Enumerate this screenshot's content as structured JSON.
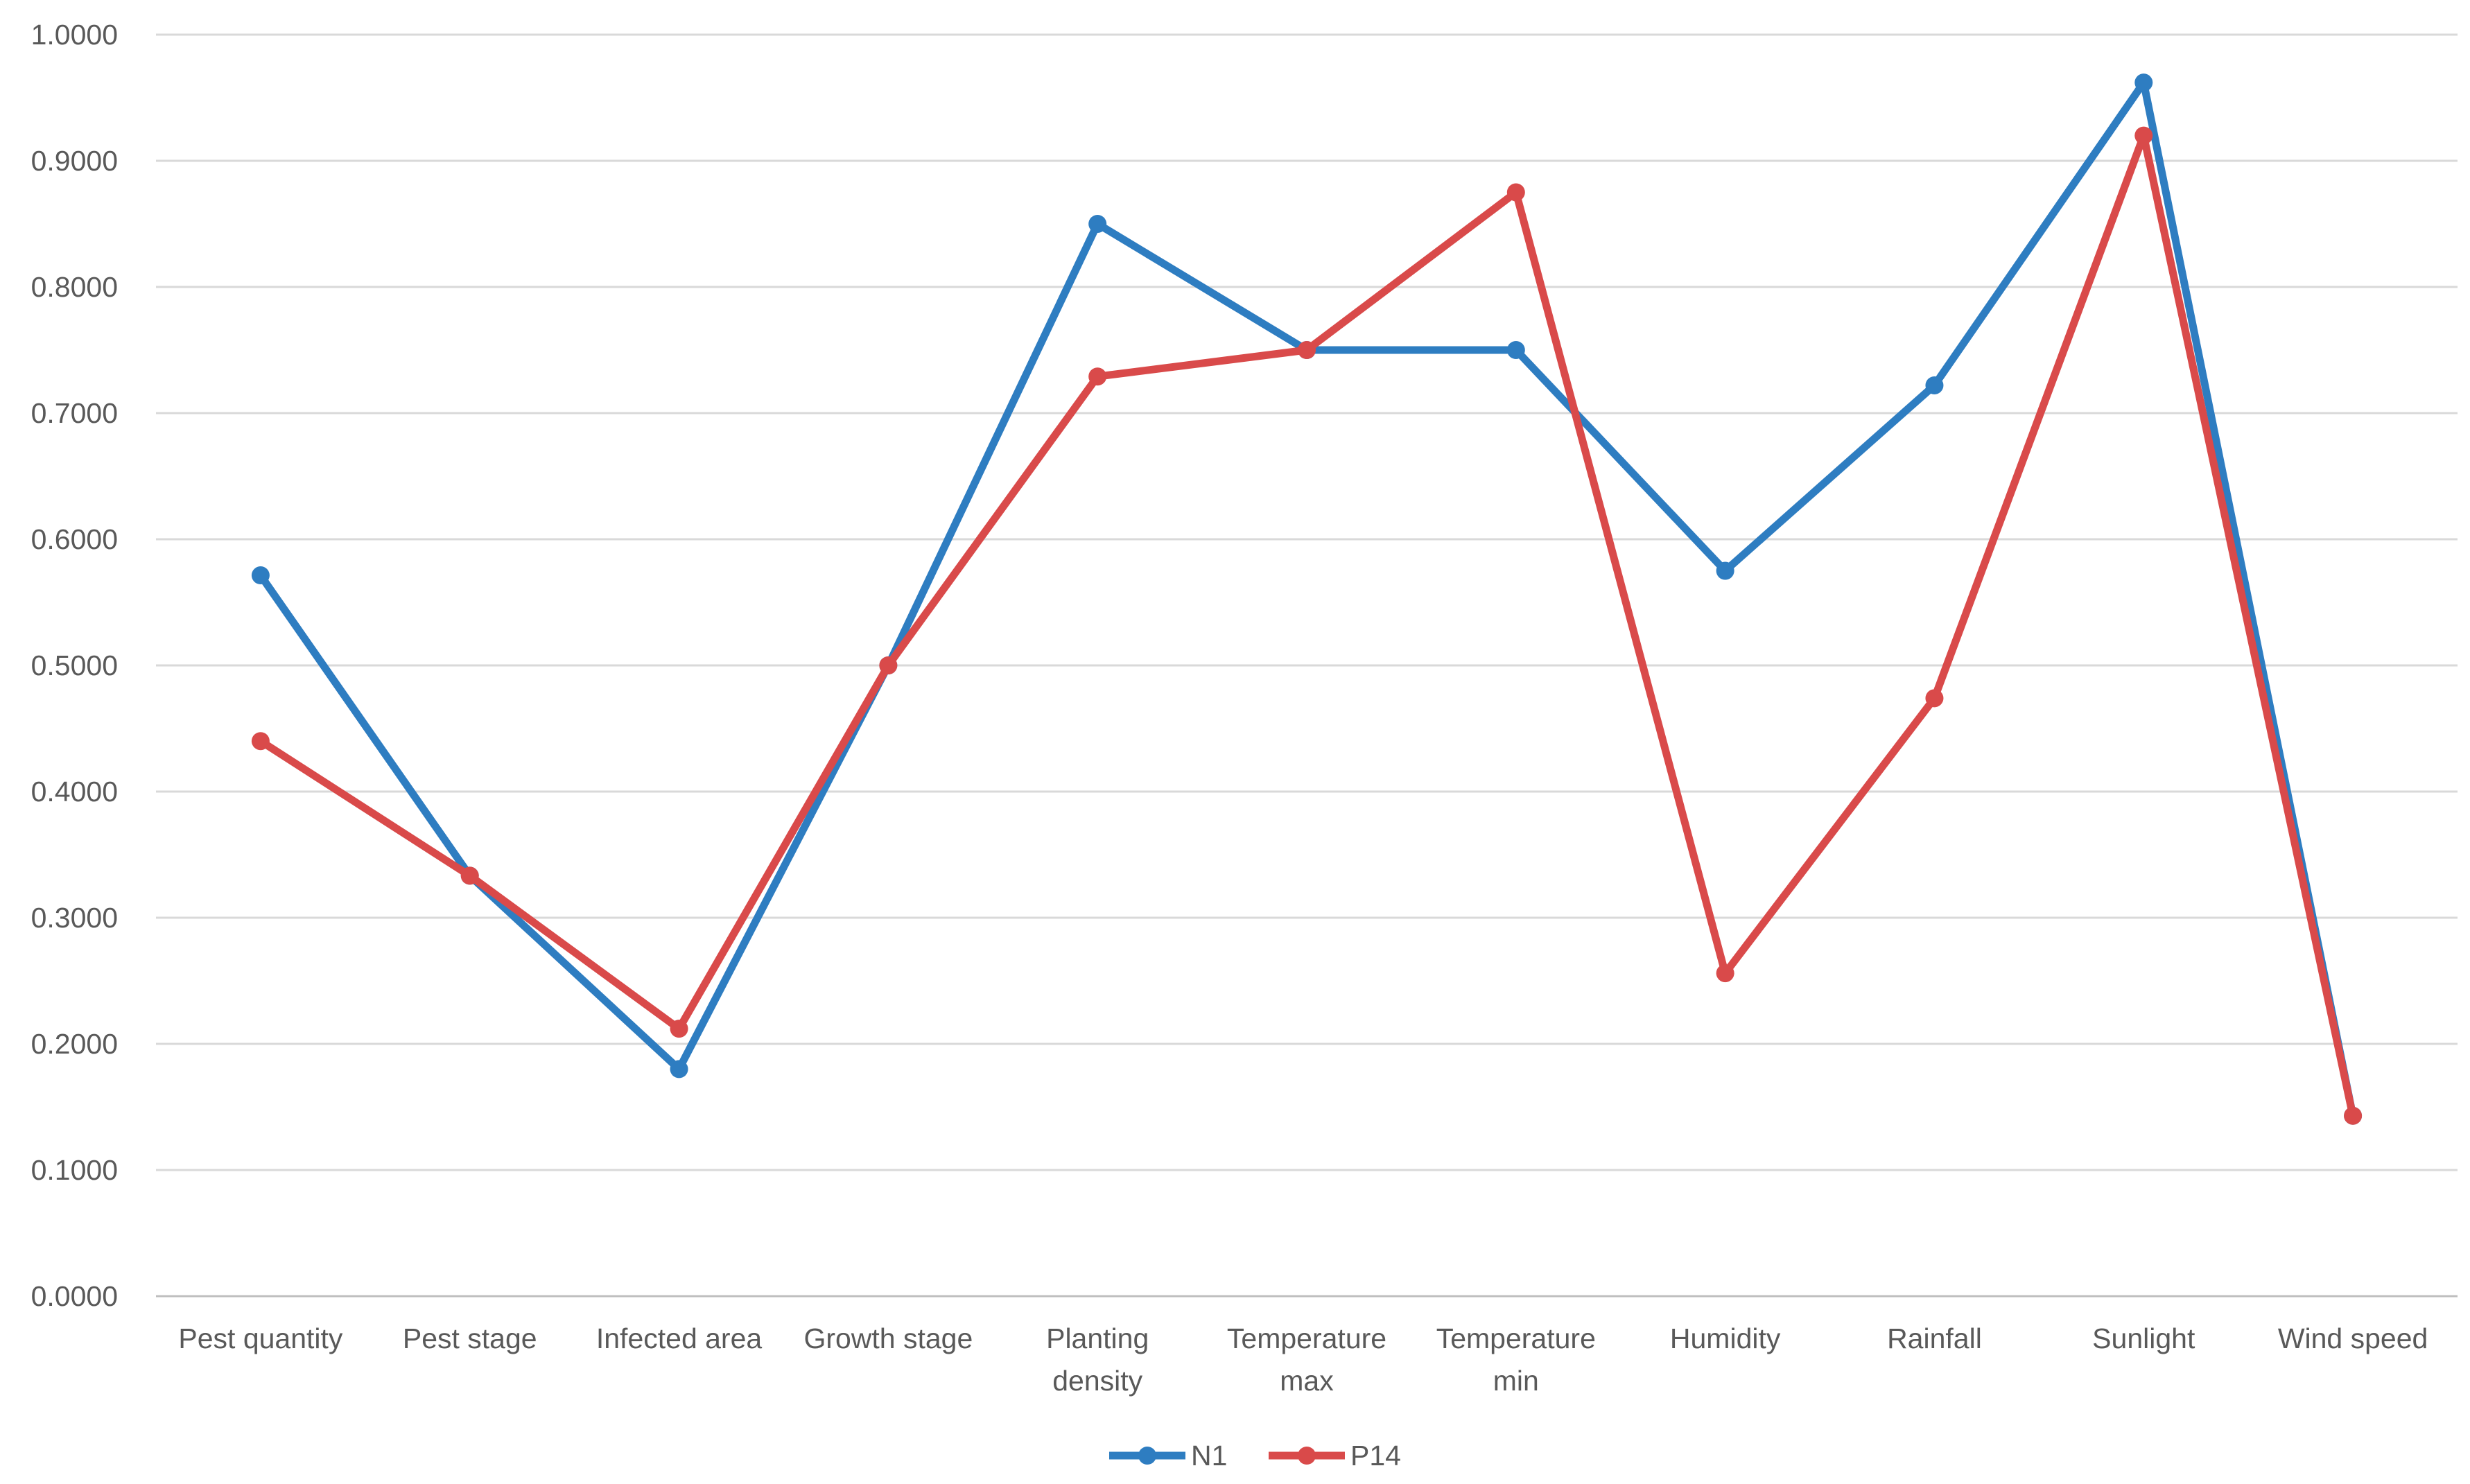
{
  "chart_data": {
    "type": "line",
    "title": "",
    "xlabel": "",
    "ylabel": "",
    "categories": [
      [
        "Pest quantity"
      ],
      [
        "Pest stage"
      ],
      [
        "Infected area"
      ],
      [
        "Growth stage"
      ],
      [
        "Planting",
        "density"
      ],
      [
        "Temperature",
        "max"
      ],
      [
        "Temperature",
        "min"
      ],
      [
        "Humidity"
      ],
      [
        "Rainfall"
      ],
      [
        "Sunlight"
      ],
      [
        "Wind speed"
      ]
    ],
    "y_ticks": [
      "0.0000",
      "0.1000",
      "0.2000",
      "0.3000",
      "0.4000",
      "0.5000",
      "0.6000",
      "0.7000",
      "0.8000",
      "0.9000",
      "1.0000"
    ],
    "ylim": [
      0,
      1
    ],
    "grid": true,
    "legend_position": "bottom",
    "series": [
      {
        "name": "N1",
        "color": "#2e7dc1",
        "values": [
          0.5714,
          0.3333,
          0.18,
          0.5,
          0.85,
          0.75,
          0.75,
          0.575,
          0.722,
          0.962,
          0.143
        ]
      },
      {
        "name": "P14",
        "color": "#d94a4a",
        "values": [
          0.44,
          0.3333,
          0.212,
          0.5,
          0.729,
          0.75,
          0.875,
          0.256,
          0.474,
          0.92,
          0.143
        ]
      }
    ]
  }
}
